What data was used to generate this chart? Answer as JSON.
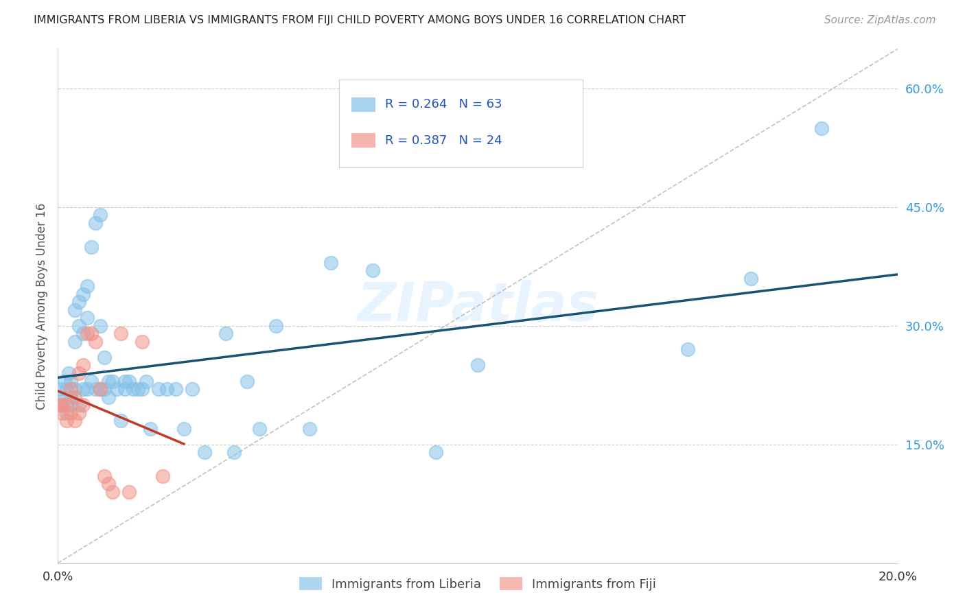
{
  "title": "IMMIGRANTS FROM LIBERIA VS IMMIGRANTS FROM FIJI CHILD POVERTY AMONG BOYS UNDER 16 CORRELATION CHART",
  "source": "Source: ZipAtlas.com",
  "ylabel": "Child Poverty Among Boys Under 16",
  "watermark": "ZIPatlas",
  "legend1_label": "Immigrants from Liberia",
  "legend2_label": "Immigrants from Fiji",
  "r1": 0.264,
  "n1": 63,
  "r2": 0.387,
  "n2": 24,
  "color1": "#85C1E9",
  "color2": "#F1948A",
  "trendline1_color": "#1A5276",
  "trendline2_color": "#C0392B",
  "diag_color": "#BBBBBB",
  "xlim": [
    0.0,
    0.2
  ],
  "ylim": [
    0.0,
    0.65
  ],
  "ytick_positions": [
    0.15,
    0.3,
    0.45,
    0.6
  ],
  "ytick_labels": [
    "15.0%",
    "30.0%",
    "45.0%",
    "60.0%"
  ],
  "liberia_x": [
    0.0005,
    0.001,
    0.001,
    0.0015,
    0.002,
    0.002,
    0.0025,
    0.003,
    0.003,
    0.003,
    0.004,
    0.004,
    0.004,
    0.005,
    0.005,
    0.005,
    0.006,
    0.006,
    0.006,
    0.007,
    0.007,
    0.007,
    0.008,
    0.008,
    0.009,
    0.009,
    0.01,
    0.01,
    0.01,
    0.011,
    0.011,
    0.012,
    0.012,
    0.013,
    0.014,
    0.015,
    0.016,
    0.016,
    0.017,
    0.018,
    0.019,
    0.02,
    0.021,
    0.022,
    0.024,
    0.026,
    0.028,
    0.03,
    0.032,
    0.035,
    0.04,
    0.042,
    0.045,
    0.048,
    0.052,
    0.06,
    0.065,
    0.075,
    0.09,
    0.1,
    0.15,
    0.165,
    0.182
  ],
  "liberia_y": [
    0.22,
    0.21,
    0.2,
    0.23,
    0.22,
    0.19,
    0.24,
    0.23,
    0.21,
    0.2,
    0.32,
    0.28,
    0.22,
    0.33,
    0.3,
    0.2,
    0.34,
    0.29,
    0.22,
    0.35,
    0.31,
    0.22,
    0.4,
    0.23,
    0.43,
    0.22,
    0.44,
    0.3,
    0.22,
    0.26,
    0.22,
    0.23,
    0.21,
    0.23,
    0.22,
    0.18,
    0.23,
    0.22,
    0.23,
    0.22,
    0.22,
    0.22,
    0.23,
    0.17,
    0.22,
    0.22,
    0.22,
    0.17,
    0.22,
    0.14,
    0.29,
    0.14,
    0.23,
    0.17,
    0.3,
    0.17,
    0.38,
    0.37,
    0.14,
    0.25,
    0.27,
    0.36,
    0.55
  ],
  "fiji_x": [
    0.0005,
    0.001,
    0.001,
    0.002,
    0.002,
    0.003,
    0.003,
    0.004,
    0.004,
    0.005,
    0.005,
    0.006,
    0.006,
    0.007,
    0.008,
    0.009,
    0.01,
    0.011,
    0.012,
    0.013,
    0.015,
    0.017,
    0.02,
    0.025
  ],
  "fiji_y": [
    0.2,
    0.2,
    0.19,
    0.2,
    0.18,
    0.22,
    0.19,
    0.21,
    0.18,
    0.24,
    0.19,
    0.25,
    0.2,
    0.29,
    0.29,
    0.28,
    0.22,
    0.11,
    0.1,
    0.09,
    0.29,
    0.09,
    0.28,
    0.11
  ]
}
